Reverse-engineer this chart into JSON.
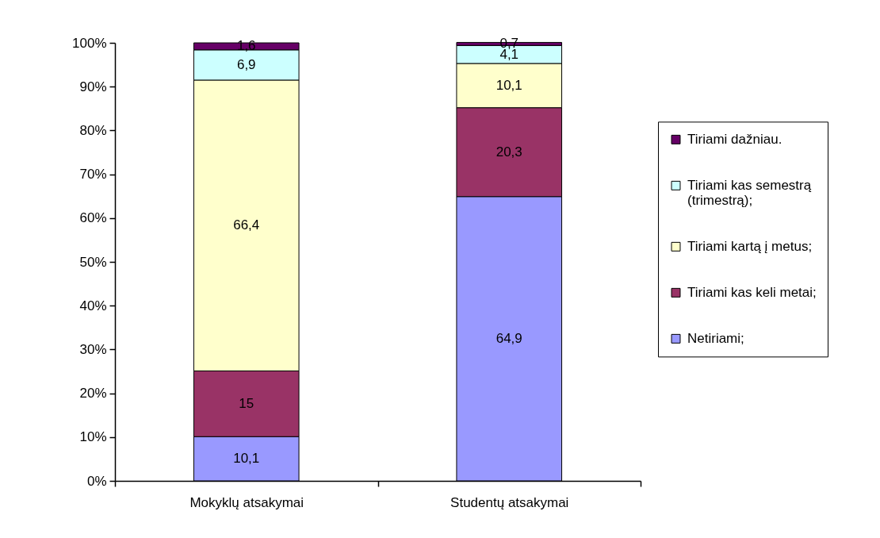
{
  "chart_data": {
    "type": "bar",
    "stacked": true,
    "categories": [
      "Mokyklų atsakymai",
      "Studentų atsakymai"
    ],
    "series": [
      {
        "name": "Netiriami;",
        "color": "#9999ff",
        "values": [
          10.1,
          64.9
        ],
        "value_labels": [
          "10,1",
          "64,9"
        ]
      },
      {
        "name": "Tiriami kas keli metai;",
        "color": "#993366",
        "values": [
          15,
          20.3
        ],
        "value_labels": [
          "15",
          "20,3"
        ]
      },
      {
        "name": "Tiriami kartą į metus;",
        "color": "#ffffcc",
        "values": [
          66.4,
          10.1
        ],
        "value_labels": [
          "66,4",
          "10,1"
        ]
      },
      {
        "name": "Tiriami kas semestrą (trimestrą);",
        "color": "#ccffff",
        "values": [
          6.9,
          4.1
        ],
        "value_labels": [
          "6,9",
          "4,1"
        ]
      },
      {
        "name": "Tiriami dažniau.",
        "color": "#660066",
        "values": [
          1.6,
          0.7
        ],
        "value_labels": [
          "1,6",
          "0,7"
        ]
      }
    ],
    "ylim": [
      0,
      100
    ],
    "yticks": [
      {
        "value": 0,
        "label": "0%"
      },
      {
        "value": 10,
        "label": "10%"
      },
      {
        "value": 20,
        "label": "20%"
      },
      {
        "value": 30,
        "label": "30%"
      },
      {
        "value": 40,
        "label": "40%"
      },
      {
        "value": 50,
        "label": "50%"
      },
      {
        "value": 60,
        "label": "60%"
      },
      {
        "value": 70,
        "label": "70%"
      },
      {
        "value": 80,
        "label": "80%"
      },
      {
        "value": 90,
        "label": "90%"
      },
      {
        "value": 100,
        "label": "100%"
      }
    ],
    "grid": false,
    "legend": "right"
  }
}
